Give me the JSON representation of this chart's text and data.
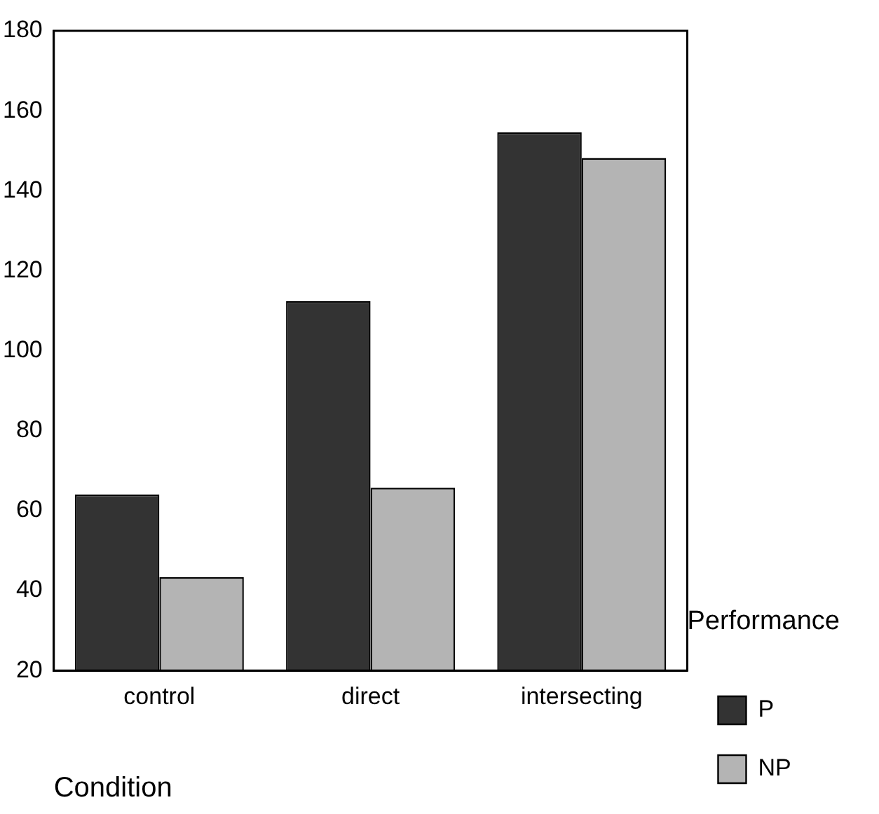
{
  "chart_data": {
    "type": "bar",
    "xlabel": "Condition",
    "legend_title": "Performance",
    "legend": "right",
    "categories": [
      "control",
      "direct",
      "intersecting"
    ],
    "series": [
      {
        "name": "P",
        "color": "#333333",
        "values": [
          64,
          112.4,
          154.6
        ]
      },
      {
        "name": "NP",
        "color": "#b4b4b4",
        "values": [
          43.4,
          65.7,
          148.2
        ]
      }
    ],
    "ylim": [
      20,
      180
    ],
    "yticks": [
      20,
      40,
      60,
      80,
      100,
      120,
      140,
      160,
      180
    ]
  }
}
